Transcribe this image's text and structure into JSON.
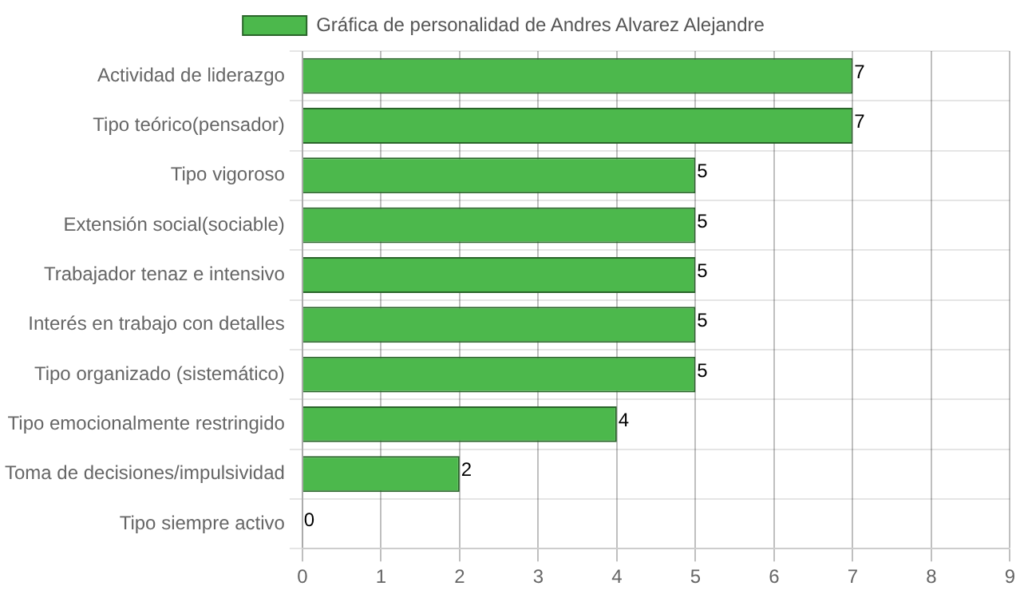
{
  "chart_data": {
    "type": "bar",
    "orientation": "horizontal",
    "categories": [
      "Actividad de liderazgo",
      "Tipo teórico(pensador)",
      "Tipo vigoroso",
      "Extensión social(sociable)",
      "Trabajador tenaz e intensivo",
      "Interés en trabajo con detalles",
      "Tipo organizado (sistemático)",
      "Tipo emocionalmente restringido",
      "Toma de decisiones/impulsividad",
      "Tipo siempre activo"
    ],
    "series": [
      {
        "name": "Gráfica de personalidad de Andres Alvarez Alejandre",
        "color": "#4cb84c",
        "values": [
          7,
          7,
          5,
          5,
          5,
          5,
          5,
          4,
          2,
          0
        ]
      }
    ],
    "xlim": [
      0,
      9
    ],
    "xticks": [
      0,
      1,
      2,
      3,
      4,
      5,
      6,
      7,
      8,
      9
    ],
    "grid": true,
    "legend": "top",
    "data_labels": true
  }
}
